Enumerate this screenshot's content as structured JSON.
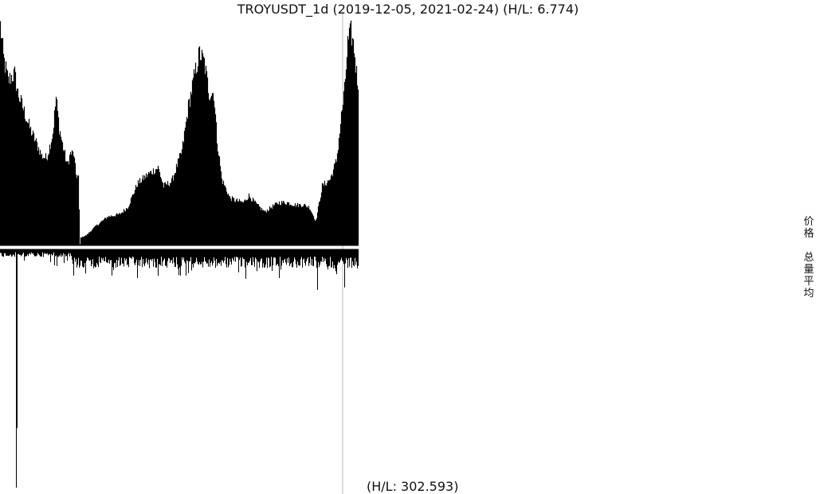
{
  "title": "TROYUSDT_1d (2019-12-05, 2021-02-24) (H/L: 6.774)",
  "bottom_label": "(H/L: 302.593)",
  "side_labels": {
    "price": "价格",
    "volume": "总量平均"
  },
  "colors": {
    "bars": "#000000",
    "cursor": "#bbbbbb",
    "background": "#ffffff"
  },
  "chart_data": [
    {
      "type": "area",
      "name": "price",
      "x_range": [
        "2019-12-05",
        "2021-02-24"
      ],
      "hl_ratio": 6.774,
      "ylim": [
        0,
        1
      ],
      "shape_keyframes": [
        [
          0,
          0.94
        ],
        [
          4,
          0.8
        ],
        [
          10,
          0.7
        ],
        [
          14,
          0.72
        ],
        [
          18,
          0.73
        ],
        [
          22,
          0.65
        ],
        [
          30,
          0.57
        ],
        [
          38,
          0.49
        ],
        [
          46,
          0.43
        ],
        [
          52,
          0.38
        ],
        [
          58,
          0.37
        ],
        [
          62,
          0.42
        ],
        [
          66,
          0.48
        ],
        [
          70,
          0.63
        ],
        [
          74,
          0.5
        ],
        [
          78,
          0.43
        ],
        [
          84,
          0.34
        ],
        [
          88,
          0.39
        ],
        [
          92,
          0.39
        ],
        [
          95,
          0.3
        ],
        [
          98,
          0.29
        ],
        [
          100,
          0.0
        ],
        [
          101,
          0.03
        ],
        [
          108,
          0.04
        ],
        [
          120,
          0.08
        ],
        [
          135,
          0.12
        ],
        [
          150,
          0.13
        ],
        [
          160,
          0.16
        ],
        [
          172,
          0.26
        ],
        [
          185,
          0.3
        ],
        [
          198,
          0.33
        ],
        [
          205,
          0.25
        ],
        [
          215,
          0.27
        ],
        [
          228,
          0.4
        ],
        [
          236,
          0.59
        ],
        [
          244,
          0.73
        ],
        [
          250,
          0.82
        ],
        [
          256,
          0.78
        ],
        [
          262,
          0.65
        ],
        [
          268,
          0.65
        ],
        [
          272,
          0.45
        ],
        [
          278,
          0.28
        ],
        [
          288,
          0.2
        ],
        [
          295,
          0.19
        ],
        [
          305,
          0.18
        ],
        [
          312,
          0.21
        ],
        [
          322,
          0.17
        ],
        [
          332,
          0.14
        ],
        [
          340,
          0.16
        ],
        [
          350,
          0.18
        ],
        [
          360,
          0.18
        ],
        [
          370,
          0.17
        ],
        [
          380,
          0.17
        ],
        [
          388,
          0.16
        ],
        [
          396,
          0.1
        ],
        [
          404,
          0.25
        ],
        [
          414,
          0.28
        ],
        [
          422,
          0.36
        ],
        [
          428,
          0.55
        ],
        [
          432,
          0.66
        ],
        [
          436,
          0.86
        ],
        [
          440,
          0.91
        ],
        [
          444,
          0.84
        ],
        [
          448,
          0.7
        ]
      ]
    },
    {
      "type": "bar",
      "name": "volume",
      "hl_ratio": 302.593,
      "ylim": [
        0,
        1
      ],
      "spikes": [
        [
          20,
          1.0
        ],
        [
          21,
          0.75
        ],
        [
          92,
          0.11
        ],
        [
          140,
          0.11
        ],
        [
          172,
          0.12
        ],
        [
          226,
          0.11
        ],
        [
          350,
          0.12
        ],
        [
          398,
          0.17
        ],
        [
          432,
          0.16
        ]
      ]
    }
  ]
}
